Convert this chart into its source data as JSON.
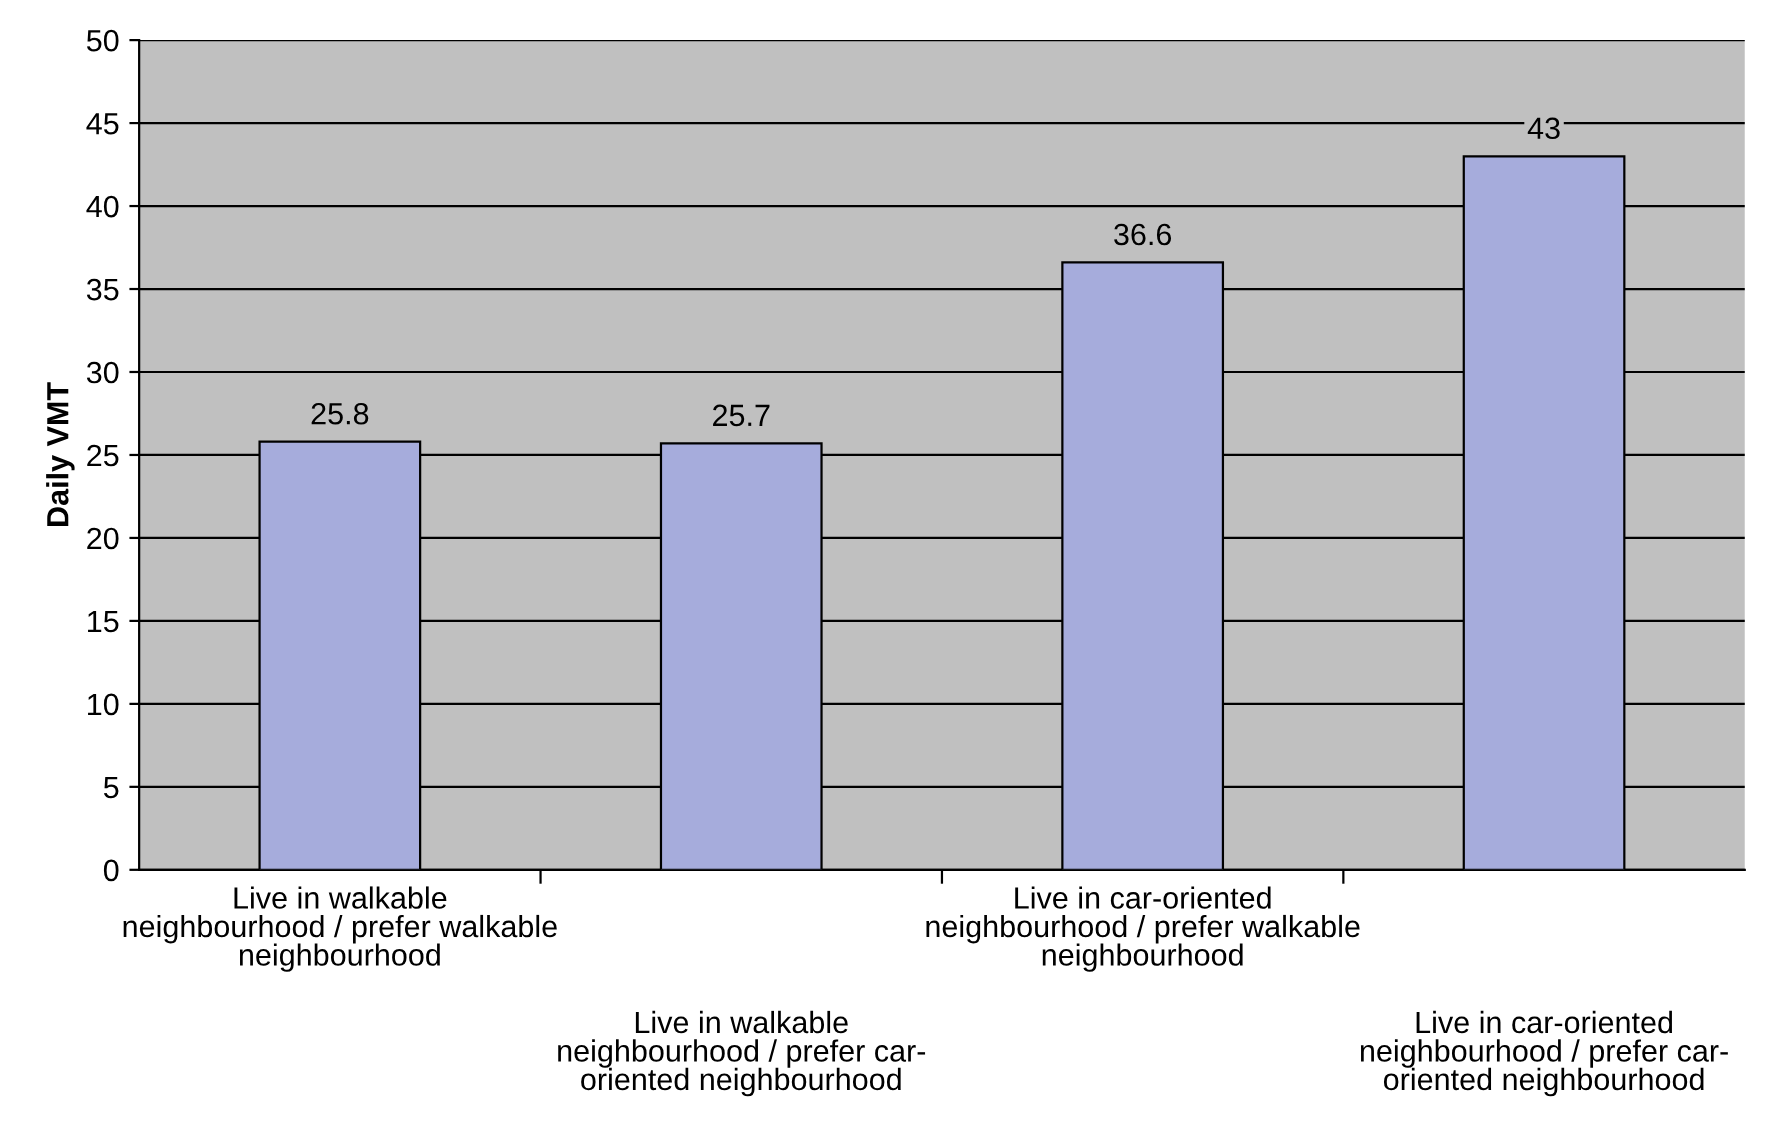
{
  "chart_data": {
    "type": "bar",
    "ylabel": "Daily VMT",
    "categories": [
      "Live in walkable\nneighbourhood / prefer walkable\nneighbourhood",
      "Live in walkable\nneighbourhood / prefer car-\noriented neighbourhood",
      "Live in car-oriented\nneighbourhood / prefer walkable\nneighbourhood",
      "Live in car-oriented\nneighbourhood / prefer car-\noriented neighbourhood"
    ],
    "values": [
      25.8,
      25.7,
      36.6,
      43
    ],
    "color": "#a6acdc",
    "ylim": [
      0,
      50
    ],
    "yticks": [
      0,
      5,
      10,
      15,
      20,
      25,
      30,
      35,
      40,
      45,
      50
    ],
    "grid": "y",
    "data_labels": true,
    "legend": false
  }
}
